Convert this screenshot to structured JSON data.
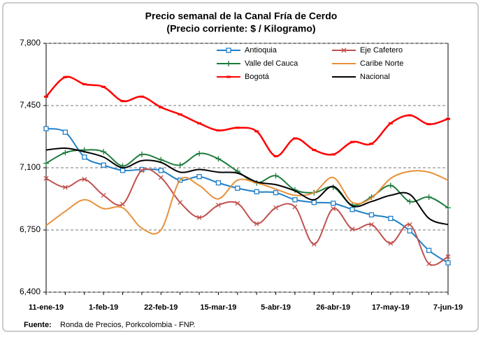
{
  "chart_data": {
    "type": "line",
    "title": "Precio semanal de la Canal Fría de Cerdo",
    "subtitle": "(Precio corriente: $ / Kilogramo)",
    "source_label": "Fuente:",
    "source": "Ronda de Precios, Porkcolombia  - FNP.",
    "categories": [
      "11-ene-19",
      null,
      null,
      "1-feb-19",
      null,
      null,
      "22-feb-19",
      null,
      null,
      "15-mar-19",
      null,
      null,
      "5-abr-19",
      null,
      null,
      "26-abr-19",
      null,
      null,
      "17-may-19",
      null,
      null,
      "7-jun-19"
    ],
    "ylim": [
      6400,
      7800
    ],
    "yticks": [
      {
        "value": 6400,
        "label": "6,400"
      },
      {
        "value": 6750,
        "label": "6,750"
      },
      {
        "value": 7100,
        "label": "7,100"
      },
      {
        "value": 7450,
        "label": "7,450"
      },
      {
        "value": 7800,
        "label": "7,800"
      }
    ],
    "grid": true,
    "legend": "top",
    "series": [
      {
        "name": "Antioquia",
        "color": "#1f7fc8",
        "marker": "square",
        "values": [
          7320,
          7300,
          7160,
          7115,
          7085,
          7090,
          7085,
          7030,
          7050,
          7015,
          6985,
          6965,
          6960,
          6920,
          6905,
          6900,
          6865,
          6835,
          6815,
          6745,
          6635,
          6565
        ]
      },
      {
        "name": "Eje Cafetero",
        "color": "#c0504d",
        "marker": "x",
        "values": [
          7040,
          6990,
          7035,
          6945,
          6895,
          7085,
          7045,
          6905,
          6820,
          6890,
          6900,
          6785,
          6875,
          6880,
          6670,
          6870,
          6755,
          6780,
          6675,
          6780,
          6560,
          6600
        ]
      },
      {
        "name": "Valle del Cauca",
        "color": "#1e7a3c",
        "marker": "plus",
        "values": [
          7125,
          7185,
          7200,
          7190,
          7110,
          7175,
          7145,
          7115,
          7180,
          7150,
          7080,
          7015,
          7055,
          6975,
          6960,
          6990,
          6890,
          6935,
          7000,
          6910,
          6935,
          6875
        ]
      },
      {
        "name": "Caribe Norte",
        "color": "#e8913a",
        "marker": "none",
        "values": [
          6775,
          6855,
          6920,
          6870,
          6875,
          6760,
          6750,
          7030,
          7000,
          6925,
          7030,
          7015,
          6980,
          6945,
          6960,
          7045,
          6905,
          6930,
          7040,
          7080,
          7075,
          7030
        ]
      },
      {
        "name": "Bogotá",
        "color": "#ff0000",
        "marker": "dash",
        "values": [
          7500,
          7610,
          7570,
          7555,
          7475,
          7500,
          7440,
          7400,
          7350,
          7310,
          7325,
          7305,
          7165,
          7265,
          7200,
          7175,
          7245,
          7235,
          7350,
          7395,
          7345,
          7375
        ]
      },
      {
        "name": "Nacional",
        "color": "#000000",
        "marker": "none",
        "values": [
          7200,
          7210,
          7190,
          7160,
          7100,
          7140,
          7130,
          7075,
          7090,
          7075,
          7070,
          7020,
          7005,
          6970,
          6920,
          6995,
          6885,
          6910,
          6945,
          6950,
          6815,
          6780
        ]
      }
    ]
  }
}
